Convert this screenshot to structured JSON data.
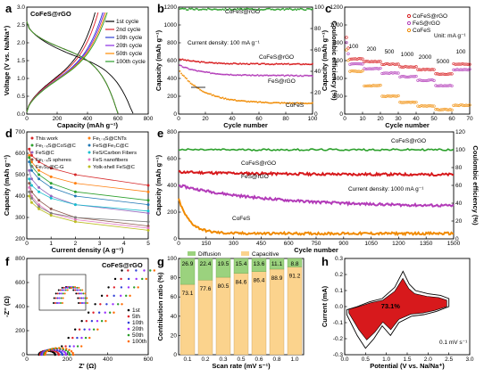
{
  "colors": {
    "c1": "#000000",
    "c2": "#e0202a",
    "c3": "#2f3fd6",
    "c4": "#8a2be2",
    "c5": "#ff8c00",
    "c6": "#2a9d2a",
    "green": "#2ca02c",
    "orange": "#f08a00",
    "red": "#d7191c",
    "purple": "#b23ab8",
    "peach": "#fbd38d",
    "lightgreen": "#9bd27e"
  },
  "chart_data": [
    {
      "panel": "a",
      "type": "line",
      "legend_title": "CoFeS@rGO",
      "xlabel": "Capacity (mAh g⁻¹)",
      "ylabel": "Voltage (V vs. Na/Na⁺)",
      "xlim": [
        0,
        800
      ],
      "ylim": [
        0,
        3.0
      ],
      "xticks": [
        0,
        200,
        400,
        600,
        800
      ],
      "yticks": [
        "0.0",
        "0.5",
        "1.0",
        "1.5",
        "2.0",
        "2.5",
        "3.0"
      ],
      "series": [
        {
          "name": "1st cycle",
          "charge_end": 450,
          "discharge_end": 700
        },
        {
          "name": "2nd cycle",
          "charge_end": 470,
          "discharge_end": 600
        },
        {
          "name": "10th cycle",
          "charge_end": 500,
          "discharge_end": 600
        },
        {
          "name": "20th cycle",
          "charge_end": 510,
          "discharge_end": 600
        },
        {
          "name": "50th cycle",
          "charge_end": 520,
          "discharge_end": 600
        },
        {
          "name": "100th cycle",
          "charge_end": 530,
          "discharge_end": 600
        }
      ]
    },
    {
      "panel": "b",
      "type": "scatter",
      "xlabel": "Cycle number",
      "ylabel": "Capacity (mAh g⁻¹)",
      "y2label": "Coulombic efficiency (%)",
      "xlim": [
        0,
        100
      ],
      "ylim": [
        0,
        1200
      ],
      "y2lim": [
        0,
        100
      ],
      "xticks": [
        0,
        20,
        40,
        60,
        80,
        100
      ],
      "yticks": [
        0,
        200,
        400,
        600,
        800,
        1000,
        1200
      ],
      "y2ticks": [
        0,
        20,
        40,
        60,
        80,
        100
      ],
      "annotations": [
        "Current density: 100 mA g⁻¹"
      ],
      "series": [
        {
          "name": "CoFeS@rGO",
          "start": 620,
          "end": 560
        },
        {
          "name": "FeS@rGO",
          "start": 550,
          "end": 430
        },
        {
          "name": "CoFeS",
          "start": 500,
          "end": 120
        },
        {
          "name": "CoFeS@rGO",
          "axis": "y2",
          "value": 98
        }
      ]
    },
    {
      "panel": "c",
      "type": "scatter",
      "xlabel": "Cycle number",
      "ylabel": "Capacity (mAh g⁻¹)",
      "xlim": [
        0,
        70
      ],
      "ylim": [
        0,
        1200
      ],
      "xticks": [
        0,
        10,
        20,
        30,
        40,
        50,
        60,
        70
      ],
      "yticks": [
        0,
        200,
        400,
        600,
        800,
        1000,
        1200
      ],
      "unit_label": "Unit: mA g⁻¹",
      "rate_labels": [
        "100",
        "200",
        "500",
        "1000",
        "2000",
        "5000",
        "100"
      ],
      "series": [
        {
          "name": "CoFeS@rGO",
          "steps": [
            620,
            590,
            560,
            530,
            500,
            450,
            560
          ]
        },
        {
          "name": "FeS@rGO",
          "steps": [
            560,
            510,
            460,
            420,
            380,
            320,
            500
          ]
        },
        {
          "name": "CoFeS",
          "steps": [
            480,
            320,
            200,
            130,
            90,
            50,
            100
          ]
        }
      ]
    },
    {
      "panel": "d",
      "type": "line",
      "xlabel": "Current density (A g⁻¹)",
      "ylabel": "Capacity (mAh g⁻¹)",
      "xlim": [
        0,
        5
      ],
      "ylim": [
        200,
        700
      ],
      "xticks": [
        0,
        1,
        2,
        3,
        4,
        5
      ],
      "yticks": [
        200,
        300,
        400,
        500,
        600,
        700
      ],
      "series": [
        {
          "name": "This work",
          "x": [
            0.1,
            0.2,
            0.5,
            1,
            2,
            5
          ],
          "values": [
            620,
            590,
            560,
            530,
            500,
            450
          ]
        },
        {
          "name": "Fe₁₋ₓS@CNTs",
          "x": [
            0.1,
            0.2,
            0.5,
            1,
            2,
            5
          ],
          "values": [
            590,
            560,
            520,
            490,
            460,
            420
          ]
        },
        {
          "name": "Fe₁₋ₓS@CoS@C",
          "x": [
            0.1,
            0.2,
            0.5,
            1,
            2,
            5
          ],
          "values": [
            580,
            540,
            500,
            460,
            420,
            380
          ]
        },
        {
          "name": "FeS@Fe₃C@C",
          "x": [
            0.1,
            0.2,
            0.5,
            1,
            2,
            5
          ],
          "values": [
            560,
            520,
            480,
            440,
            400,
            360
          ]
        },
        {
          "name": "FeS@C",
          "x": [
            0.1,
            0.2,
            0.5,
            1,
            2,
            5
          ],
          "values": [
            520,
            480,
            440,
            400,
            360,
            320
          ]
        },
        {
          "name": "FeS/Carbon Fibers",
          "x": [
            0.1,
            0.2,
            0.5,
            1,
            2,
            5
          ],
          "values": [
            480,
            450,
            420,
            390,
            360,
            330
          ]
        },
        {
          "name": "Fe₁₋ₓS spheres",
          "x": [
            0.1,
            0.2,
            0.5,
            1,
            2,
            5
          ],
          "values": [
            460,
            420,
            380,
            340,
            300,
            260
          ]
        },
        {
          "name": "FeS nanofibers",
          "x": [
            0.1,
            0.2,
            0.5,
            1,
            2,
            5
          ],
          "values": [
            440,
            400,
            360,
            320,
            290,
            250
          ]
        },
        {
          "name": "Fe₇S₈@C-G",
          "x": [
            0.1,
            0.2,
            0.5,
            1,
            2,
            5
          ],
          "values": [
            420,
            390,
            350,
            320,
            300,
            280
          ]
        },
        {
          "name": "Yolk-shell FeS@C",
          "x": [
            0.1,
            0.2,
            0.5,
            1,
            2,
            5
          ],
          "values": [
            400,
            370,
            340,
            310,
            280,
            240
          ]
        }
      ]
    },
    {
      "panel": "e",
      "type": "scatter",
      "xlabel": "Cycle number",
      "ylabel": "Capacity (mAh g⁻¹)",
      "y2label": "Coulombic efficiency (%)",
      "xlim": [
        0,
        1500
      ],
      "ylim": [
        0,
        800
      ],
      "y2lim": [
        0,
        120
      ],
      "xticks": [
        0,
        150,
        300,
        450,
        600,
        750,
        900,
        1050,
        1200,
        1350,
        1500
      ],
      "yticks": [
        0,
        200,
        400,
        600,
        800
      ],
      "y2ticks": [
        0,
        20,
        40,
        60,
        80,
        100,
        120
      ],
      "annotations": [
        "Current density: 1000 mA g⁻¹"
      ],
      "series": [
        {
          "name": "CoFeS@rGO",
          "start": 500,
          "end": 480
        },
        {
          "name": "FeS@rGO",
          "start": 400,
          "end": 240
        },
        {
          "name": "CoFeS",
          "start": 300,
          "end": 40
        },
        {
          "name": "CoFeS@rGO",
          "axis": "y2",
          "value": 100
        }
      ]
    },
    {
      "panel": "f",
      "type": "scatter",
      "legend_title": "CoFeS@rGO",
      "xlabel": "Z' (Ω)",
      "ylabel": "-Z'' (Ω)",
      "xlim": [
        0,
        600
      ],
      "ylim": [
        0,
        800
      ],
      "xticks": [
        0,
        200,
        400,
        600
      ],
      "yticks": [
        0,
        200,
        400,
        600,
        800
      ],
      "series": [
        {
          "name": "1st"
        },
        {
          "name": "5th"
        },
        {
          "name": "10th"
        },
        {
          "name": "20th"
        },
        {
          "name": "50th"
        },
        {
          "name": "100th"
        }
      ]
    },
    {
      "panel": "g",
      "type": "bar",
      "xlabel": "Scan rate (mV s⁻¹)",
      "ylabel": "Contribution ratio (%)",
      "categories": [
        "0.1",
        "0.2",
        "0.3",
        "0.5",
        "0.6",
        "0.8",
        "1.0"
      ],
      "ylim": [
        0,
        100
      ],
      "yticks": [
        0,
        20,
        40,
        60,
        80,
        100
      ],
      "series": [
        {
          "name": "Diffusion",
          "values": [
            26.9,
            22.4,
            19.5,
            15.4,
            13.6,
            11.1,
            8.8
          ]
        },
        {
          "name": "Capacitive",
          "values": [
            73.1,
            77.6,
            80.5,
            84.6,
            86.4,
            88.9,
            91.2
          ]
        }
      ]
    },
    {
      "panel": "h",
      "type": "area",
      "xlabel": "Potential (V vs. Na/Na⁺)",
      "ylabel": "Current (mA)",
      "xlim": [
        0,
        3.0
      ],
      "ylim": [
        -0.3,
        0.3
      ],
      "xticks": [
        "0.0",
        "0.5",
        "1.0",
        "1.5",
        "2.0",
        "2.5",
        "3.0"
      ],
      "yticks": [
        "-0.3",
        "-0.2",
        "-0.1",
        "0.0",
        "0.1",
        "0.2",
        "0.3"
      ],
      "annotations": [
        "73.1%",
        "0.1 mV s⁻¹"
      ]
    }
  ]
}
